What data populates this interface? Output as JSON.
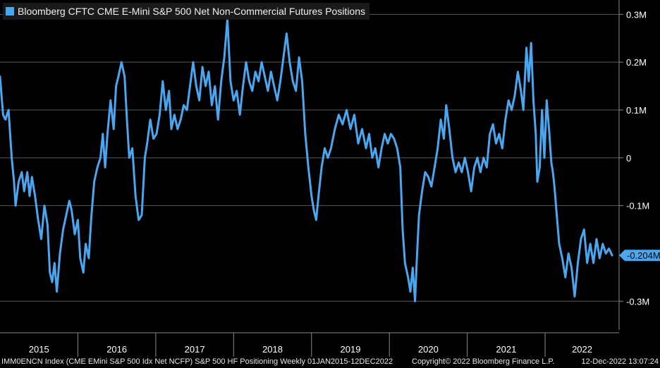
{
  "legend": {
    "label": "Bloomberg CFTC CME E-Mini S&P 500 Net Non-Commercial Futures Positions",
    "color": "#4ba6f0"
  },
  "footer": {
    "left": "IMM0ENCN Index (CME EMini S&P 500 Idx Net NCFP) S&P 500 HF Positioning  Weekly 01JAN2015-12DEC2022",
    "copyright": "Copyright© 2022 Bloomberg Finance L.P.",
    "timestamp": "12-Dec-2022 13:07:24"
  },
  "chart_data": {
    "type": "line",
    "title": "Bloomberg CFTC CME E-Mini S&P 500 Net Non-Commercial Futures Positions",
    "xlabel": "",
    "ylabel": "",
    "x_range": [
      2015.0,
      2022.95
    ],
    "ylim": [
      -0.36,
      0.33
    ],
    "y_unit": "M",
    "grid": true,
    "legend_position": "top-left",
    "y_ticks": [
      {
        "value": 0.3,
        "label": "0.3M"
      },
      {
        "value": 0.2,
        "label": "0.2M"
      },
      {
        "value": 0.1,
        "label": "0.1M"
      },
      {
        "value": 0,
        "label": "0"
      },
      {
        "value": -0.1,
        "label": "-0.1M"
      },
      {
        "value": -0.3,
        "label": "-0.3M"
      }
    ],
    "x_ticks": [
      {
        "value": 2015.0,
        "label": "2015"
      },
      {
        "value": 2016.0,
        "label": "2016"
      },
      {
        "value": 2017.0,
        "label": "2017"
      },
      {
        "value": 2018.0,
        "label": "2018"
      },
      {
        "value": 2019.0,
        "label": "2019"
      },
      {
        "value": 2020.0,
        "label": "2020"
      },
      {
        "value": 2021.0,
        "label": "2021"
      },
      {
        "value": 2022.0,
        "label": "2022"
      }
    ],
    "last_value": {
      "value": -0.204,
      "label": "-0.204M"
    },
    "series": [
      {
        "name": "Bloomberg CFTC CME E-Mini S&P 500 Net Non-Commercial Futures Positions",
        "color": "#4ba6f0",
        "points": [
          [
            2015.0,
            0.17
          ],
          [
            2015.04,
            0.09
          ],
          [
            2015.07,
            0.08
          ],
          [
            2015.11,
            0.1
          ],
          [
            2015.15,
            0.0
          ],
          [
            2015.18,
            -0.05
          ],
          [
            2015.2,
            -0.1
          ],
          [
            2015.24,
            -0.05
          ],
          [
            2015.28,
            -0.03
          ],
          [
            2015.31,
            -0.07
          ],
          [
            2015.35,
            -0.03
          ],
          [
            2015.38,
            -0.08
          ],
          [
            2015.41,
            -0.04
          ],
          [
            2015.45,
            -0.08
          ],
          [
            2015.49,
            -0.13
          ],
          [
            2015.53,
            -0.17
          ],
          [
            2015.57,
            -0.1
          ],
          [
            2015.61,
            -0.14
          ],
          [
            2015.64,
            -0.24
          ],
          [
            2015.67,
            -0.26
          ],
          [
            2015.7,
            -0.22
          ],
          [
            2015.73,
            -0.28
          ],
          [
            2015.77,
            -0.2
          ],
          [
            2015.81,
            -0.15
          ],
          [
            2015.85,
            -0.12
          ],
          [
            2015.89,
            -0.09
          ],
          [
            2015.92,
            -0.11
          ],
          [
            2015.96,
            -0.16
          ],
          [
            2016.0,
            -0.13
          ],
          [
            2016.03,
            -0.21
          ],
          [
            2016.07,
            -0.24
          ],
          [
            2016.1,
            -0.18
          ],
          [
            2016.14,
            -0.21
          ],
          [
            2016.17,
            -0.13
          ],
          [
            2016.21,
            -0.05
          ],
          [
            2016.25,
            -0.02
          ],
          [
            2016.29,
            0.0
          ],
          [
            2016.32,
            0.05
          ],
          [
            2016.35,
            -0.02
          ],
          [
            2016.38,
            0.05
          ],
          [
            2016.42,
            0.12
          ],
          [
            2016.46,
            0.06
          ],
          [
            2016.49,
            0.15
          ],
          [
            2016.52,
            0.17
          ],
          [
            2016.56,
            0.2
          ],
          [
            2016.6,
            0.17
          ],
          [
            2016.63,
            0.08
          ],
          [
            2016.66,
            0.0
          ],
          [
            2016.7,
            0.02
          ],
          [
            2016.74,
            -0.08
          ],
          [
            2016.78,
            -0.13
          ],
          [
            2016.82,
            -0.12
          ],
          [
            2016.86,
            0.0
          ],
          [
            2016.89,
            0.03
          ],
          [
            2016.93,
            0.08
          ],
          [
            2016.97,
            0.04
          ],
          [
            2017.01,
            0.05
          ],
          [
            2017.05,
            0.09
          ],
          [
            2017.09,
            0.16
          ],
          [
            2017.13,
            0.1
          ],
          [
            2017.17,
            0.14
          ],
          [
            2017.2,
            0.06
          ],
          [
            2017.24,
            0.09
          ],
          [
            2017.28,
            0.06
          ],
          [
            2017.32,
            0.08
          ],
          [
            2017.36,
            0.11
          ],
          [
            2017.4,
            0.1
          ],
          [
            2017.44,
            0.15
          ],
          [
            2017.48,
            0.2
          ],
          [
            2017.52,
            0.15
          ],
          [
            2017.56,
            0.12
          ],
          [
            2017.6,
            0.19
          ],
          [
            2017.64,
            0.15
          ],
          [
            2017.68,
            0.18
          ],
          [
            2017.72,
            0.11
          ],
          [
            2017.76,
            0.15
          ],
          [
            2017.8,
            0.08
          ],
          [
            2017.84,
            0.16
          ],
          [
            2017.88,
            0.21
          ],
          [
            2017.92,
            0.29
          ],
          [
            2017.96,
            0.16
          ],
          [
            2018.0,
            0.12
          ],
          [
            2018.04,
            0.14
          ],
          [
            2018.08,
            0.09
          ],
          [
            2018.12,
            0.15
          ],
          [
            2018.16,
            0.2
          ],
          [
            2018.2,
            0.16
          ],
          [
            2018.24,
            0.14
          ],
          [
            2018.28,
            0.18
          ],
          [
            2018.32,
            0.16
          ],
          [
            2018.36,
            0.2
          ],
          [
            2018.4,
            0.17
          ],
          [
            2018.44,
            0.14
          ],
          [
            2018.48,
            0.18
          ],
          [
            2018.52,
            0.15
          ],
          [
            2018.56,
            0.12
          ],
          [
            2018.6,
            0.16
          ],
          [
            2018.64,
            0.21
          ],
          [
            2018.68,
            0.26
          ],
          [
            2018.72,
            0.2
          ],
          [
            2018.76,
            0.16
          ],
          [
            2018.8,
            0.14
          ],
          [
            2018.84,
            0.21
          ],
          [
            2018.88,
            0.16
          ],
          [
            2018.92,
            0.05
          ],
          [
            2018.96,
            -0.02
          ],
          [
            2019.0,
            -0.08
          ],
          [
            2019.03,
            -0.11
          ],
          [
            2019.06,
            -0.13
          ],
          [
            2019.09,
            -0.08
          ],
          [
            2019.13,
            -0.02
          ],
          [
            2019.17,
            0.02
          ],
          [
            2019.21,
            0.0
          ],
          [
            2019.25,
            0.02
          ],
          [
            2019.3,
            0.06
          ],
          [
            2019.35,
            0.09
          ],
          [
            2019.4,
            0.07
          ],
          [
            2019.45,
            0.1
          ],
          [
            2019.5,
            0.06
          ],
          [
            2019.55,
            0.09
          ],
          [
            2019.6,
            0.03
          ],
          [
            2019.65,
            0.06
          ],
          [
            2019.7,
            0.02
          ],
          [
            2019.74,
            0.05
          ],
          [
            2019.78,
            0.0
          ],
          [
            2019.82,
            0.02
          ],
          [
            2019.86,
            -0.02
          ],
          [
            2019.9,
            0.02
          ],
          [
            2019.94,
            0.05
          ],
          [
            2019.98,
            0.03
          ],
          [
            2020.02,
            0.05
          ],
          [
            2020.06,
            0.04
          ],
          [
            2020.1,
            0.02
          ],
          [
            2020.14,
            -0.02
          ],
          [
            2020.17,
            -0.15
          ],
          [
            2020.2,
            -0.22
          ],
          [
            2020.24,
            -0.25
          ],
          [
            2020.27,
            -0.28
          ],
          [
            2020.3,
            -0.23
          ],
          [
            2020.33,
            -0.3
          ],
          [
            2020.35,
            -0.22
          ],
          [
            2020.38,
            -0.12
          ],
          [
            2020.42,
            -0.07
          ],
          [
            2020.46,
            -0.03
          ],
          [
            2020.5,
            -0.04
          ],
          [
            2020.54,
            -0.06
          ],
          [
            2020.58,
            -0.02
          ],
          [
            2020.62,
            0.02
          ],
          [
            2020.66,
            0.08
          ],
          [
            2020.7,
            0.04
          ],
          [
            2020.73,
            0.11
          ],
          [
            2020.77,
            0.06
          ],
          [
            2020.81,
            0.0
          ],
          [
            2020.85,
            -0.03
          ],
          [
            2020.89,
            -0.01
          ],
          [
            2020.93,
            -0.03
          ],
          [
            2020.97,
            0.0
          ],
          [
            2021.01,
            -0.03
          ],
          [
            2021.05,
            -0.07
          ],
          [
            2021.09,
            -0.02
          ],
          [
            2021.13,
            0.0
          ],
          [
            2021.17,
            -0.03
          ],
          [
            2021.21,
            0.0
          ],
          [
            2021.25,
            -0.02
          ],
          [
            2021.29,
            0.05
          ],
          [
            2021.33,
            0.07
          ],
          [
            2021.37,
            0.03
          ],
          [
            2021.41,
            0.05
          ],
          [
            2021.45,
            0.02
          ],
          [
            2021.49,
            0.08
          ],
          [
            2021.53,
            0.12
          ],
          [
            2021.57,
            0.1
          ],
          [
            2021.61,
            0.13
          ],
          [
            2021.65,
            0.18
          ],
          [
            2021.69,
            0.14
          ],
          [
            2021.72,
            0.1
          ],
          [
            2021.76,
            0.23
          ],
          [
            2021.79,
            0.16
          ],
          [
            2021.82,
            0.24
          ],
          [
            2021.85,
            0.12
          ],
          [
            2021.88,
            0.05
          ],
          [
            2021.9,
            -0.05
          ],
          [
            2021.93,
            -0.02
          ],
          [
            2021.96,
            0.1
          ],
          [
            2021.99,
            0.0
          ],
          [
            2022.02,
            0.12
          ],
          [
            2022.05,
            0.06
          ],
          [
            2022.08,
            -0.01
          ],
          [
            2022.1,
            -0.03
          ],
          [
            2022.12,
            -0.06
          ],
          [
            2022.15,
            -0.12
          ],
          [
            2022.18,
            -0.18
          ],
          [
            2022.22,
            -0.21
          ],
          [
            2022.26,
            -0.25
          ],
          [
            2022.3,
            -0.2
          ],
          [
            2022.34,
            -0.23
          ],
          [
            2022.38,
            -0.29
          ],
          [
            2022.42,
            -0.22
          ],
          [
            2022.46,
            -0.17
          ],
          [
            2022.5,
            -0.15
          ],
          [
            2022.54,
            -0.22
          ],
          [
            2022.58,
            -0.18
          ],
          [
            2022.62,
            -0.22
          ],
          [
            2022.66,
            -0.17
          ],
          [
            2022.7,
            -0.21
          ],
          [
            2022.74,
            -0.18
          ],
          [
            2022.78,
            -0.2
          ],
          [
            2022.82,
            -0.19
          ],
          [
            2022.86,
            -0.204
          ]
        ]
      }
    ]
  }
}
